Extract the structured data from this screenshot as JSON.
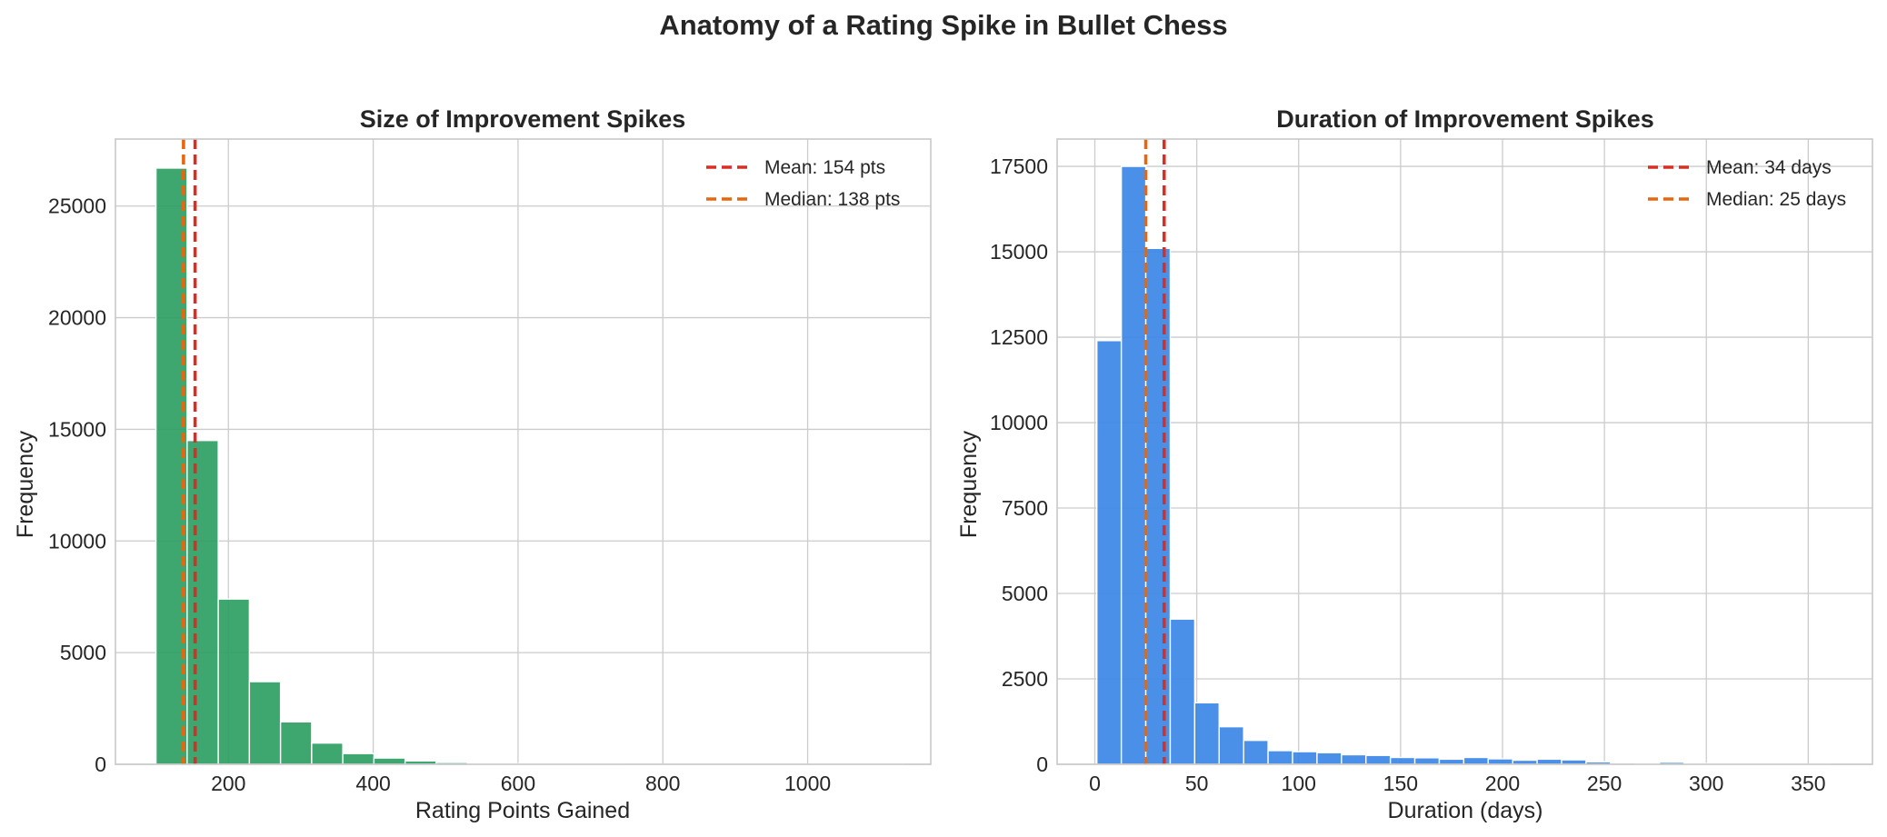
{
  "suptitle": "Anatomy of a Rating Spike in Bullet Chess",
  "chart_data": [
    {
      "type": "bar",
      "title": "Size of Improvement Spikes",
      "xlabel": "Rating Points Gained",
      "ylabel": "Frequency",
      "xlim": [
        44,
        1170
      ],
      "ylim": [
        0,
        28000
      ],
      "xticks": [
        200,
        400,
        600,
        800,
        1000
      ],
      "yticks": [
        0,
        5000,
        10000,
        15000,
        20000,
        25000
      ],
      "bar_color": "#2e9e63",
      "bin_width": 43,
      "bins": [
        100,
        143,
        186,
        229,
        272,
        315,
        358,
        401,
        444,
        487,
        530,
        573,
        616,
        659,
        702,
        745,
        788,
        831,
        874,
        917,
        960,
        1003,
        1046,
        1089
      ],
      "values": [
        26700,
        14500,
        7400,
        3700,
        1900,
        950,
        480,
        280,
        150,
        80,
        45,
        30,
        20,
        15,
        10,
        8,
        6,
        5,
        4,
        3,
        2,
        2,
        1,
        1
      ],
      "lines": [
        {
          "label": "Mean: 154 pts",
          "x": 154,
          "color": "#d62f24"
        },
        {
          "label": "Median: 138 pts",
          "x": 138,
          "color": "#e8670e"
        }
      ],
      "grid": true,
      "legend": "upper right"
    },
    {
      "type": "bar",
      "title": "Duration of Improvement Spikes",
      "xlabel": "Duration (days)",
      "ylabel": "Frequency",
      "xlim": [
        -18.5,
        381.5
      ],
      "ylim": [
        0,
        18300
      ],
      "xticks": [
        0,
        50,
        100,
        150,
        200,
        250,
        300,
        350
      ],
      "yticks": [
        0,
        2500,
        5000,
        7500,
        10000,
        12500,
        15000,
        17500
      ],
      "bar_color": "#3b87e6",
      "bin_width": 12,
      "bins": [
        1,
        13,
        25,
        37,
        49,
        61,
        73,
        85,
        97,
        109,
        121,
        133,
        145,
        157,
        169,
        181,
        193,
        205,
        217,
        229,
        241,
        253,
        265,
        277,
        289,
        301,
        313,
        325,
        337,
        349
      ],
      "values": [
        12400,
        17500,
        15100,
        4250,
        1800,
        1100,
        700,
        400,
        370,
        340,
        280,
        260,
        200,
        190,
        150,
        200,
        160,
        120,
        150,
        130,
        70,
        40,
        30,
        60,
        25,
        20,
        15,
        12,
        10,
        8
      ],
      "lines": [
        {
          "label": "Mean: 34 days",
          "x": 34,
          "color": "#d62f24"
        },
        {
          "label": "Median: 25 days",
          "x": 25,
          "color": "#e8670e"
        }
      ],
      "grid": true,
      "legend": "upper right"
    }
  ]
}
